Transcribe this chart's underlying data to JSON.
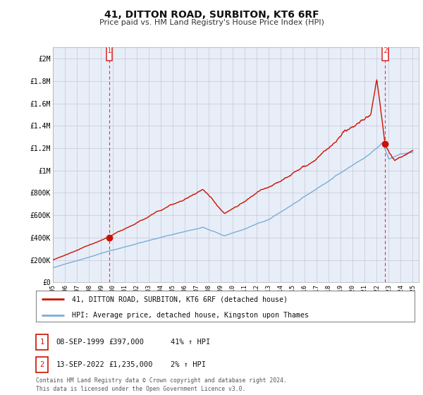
{
  "title": "41, DITTON ROAD, SURBITON, KT6 6RF",
  "subtitle": "Price paid vs. HM Land Registry's House Price Index (HPI)",
  "legend_line1": "41, DITTON ROAD, SURBITON, KT6 6RF (detached house)",
  "legend_line2": "HPI: Average price, detached house, Kingston upon Thames",
  "sale1_label": "1",
  "sale1_date": "08-SEP-1999",
  "sale1_price": "£397,000",
  "sale1_hpi": "41% ↑ HPI",
  "sale2_label": "2",
  "sale2_date": "13-SEP-2022",
  "sale2_price": "£1,235,000",
  "sale2_hpi": "2% ↑ HPI",
  "footer": "Contains HM Land Registry data © Crown copyright and database right 2024.\nThis data is licensed under the Open Government Licence v3.0.",
  "hpi_color": "#7aaed6",
  "property_color": "#cc1100",
  "sale_point_color": "#cc1100",
  "dashed_color": "#dd3333",
  "grid_color": "#ccccdd",
  "chart_bg": "#e8eef8",
  "fig_bg": "#ffffff",
  "ylim_max": 2100000,
  "yticks": [
    0,
    200000,
    400000,
    600000,
    800000,
    1000000,
    1200000,
    1400000,
    1600000,
    1800000,
    2000000
  ],
  "ytick_labels": [
    "£0",
    "£200K",
    "£400K",
    "£600K",
    "£800K",
    "£1M",
    "£1.2M",
    "£1.4M",
    "£1.6M",
    "£1.8M",
    "£2M"
  ],
  "xmin": 1995.0,
  "xmax": 2025.5,
  "sale1_x": 1999.7,
  "sale1_y": 397000,
  "sale2_x": 2022.7,
  "sale2_y": 1235000
}
